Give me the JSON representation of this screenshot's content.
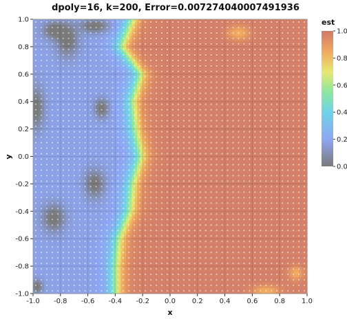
{
  "chart_data": {
    "type": "heatmap",
    "title": "dpoly=16, k=200, Error=0.007274040007491936",
    "xlabel": "x",
    "ylabel": "y",
    "xlim": [
      -1.0,
      1.0
    ],
    "ylim": [
      -1.0,
      1.0
    ],
    "x_ticks": [
      "-1.0",
      "-0.8",
      "-0.6",
      "-0.4",
      "-0.2",
      "0.0",
      "0.2",
      "0.4",
      "0.6",
      "0.8",
      "1.0"
    ],
    "y_ticks": [
      "1.0",
      "0.8",
      "0.6",
      "0.4",
      "0.2",
      "0.0",
      "-0.2",
      "-0.4",
      "-0.6",
      "-0.8",
      "-1.0"
    ],
    "grid": true,
    "sample_points_overlay": true,
    "colorscale": {
      "title": "est",
      "range": [
        0.0,
        1.0
      ],
      "ticks": [
        "1.0",
        "0.8",
        "0.6",
        "0.4",
        "0.2",
        "0.0"
      ],
      "stops": [
        {
          "v": 0.0,
          "color": "#7a7a7a"
        },
        {
          "v": 0.2,
          "color": "#8ea6f2"
        },
        {
          "v": 0.4,
          "color": "#6fd3e8"
        },
        {
          "v": 0.55,
          "color": "#8ee6a0"
        },
        {
          "v": 0.7,
          "color": "#e8e870"
        },
        {
          "v": 0.85,
          "color": "#f0a860"
        },
        {
          "v": 1.0,
          "color": "#d07a6a"
        }
      ]
    },
    "field": {
      "description_of_regions": "left region x<-0.3 low (blue/gray), right region high (salmon), transition band near x=-0.3 to -0.2",
      "transition_x": [
        -0.28,
        -0.36,
        -0.22,
        -0.28,
        -0.26,
        -0.22,
        -0.28,
        -0.3,
        -0.38,
        -0.4,
        -0.4
      ],
      "transition_y": [
        1.0,
        0.8,
        0.6,
        0.4,
        0.2,
        0.0,
        -0.2,
        -0.4,
        -0.6,
        -0.8,
        -1.0
      ],
      "low_blobs": [
        {
          "x": -0.85,
          "y": 0.92,
          "rx": 0.08,
          "ry": 0.06
        },
        {
          "x": -0.75,
          "y": 0.85,
          "rx": 0.08,
          "ry": 0.12
        },
        {
          "x": -0.55,
          "y": 0.95,
          "rx": 0.1,
          "ry": 0.05
        },
        {
          "x": -0.98,
          "y": 0.35,
          "rx": 0.06,
          "ry": 0.15
        },
        {
          "x": -0.5,
          "y": 0.35,
          "rx": 0.05,
          "ry": 0.07
        },
        {
          "x": -0.55,
          "y": -0.2,
          "rx": 0.07,
          "ry": 0.1
        },
        {
          "x": -0.85,
          "y": -0.45,
          "rx": 0.08,
          "ry": 0.1
        },
        {
          "x": -0.97,
          "y": -0.95,
          "rx": 0.04,
          "ry": 0.05
        }
      ],
      "warm_spots": [
        {
          "x": 0.5,
          "y": 0.9,
          "rx": 0.08,
          "ry": 0.05
        },
        {
          "x": 0.7,
          "y": -0.98,
          "rx": 0.1,
          "ry": 0.04
        },
        {
          "x": 0.92,
          "y": -0.85,
          "rx": 0.05,
          "ry": 0.05
        }
      ]
    }
  }
}
